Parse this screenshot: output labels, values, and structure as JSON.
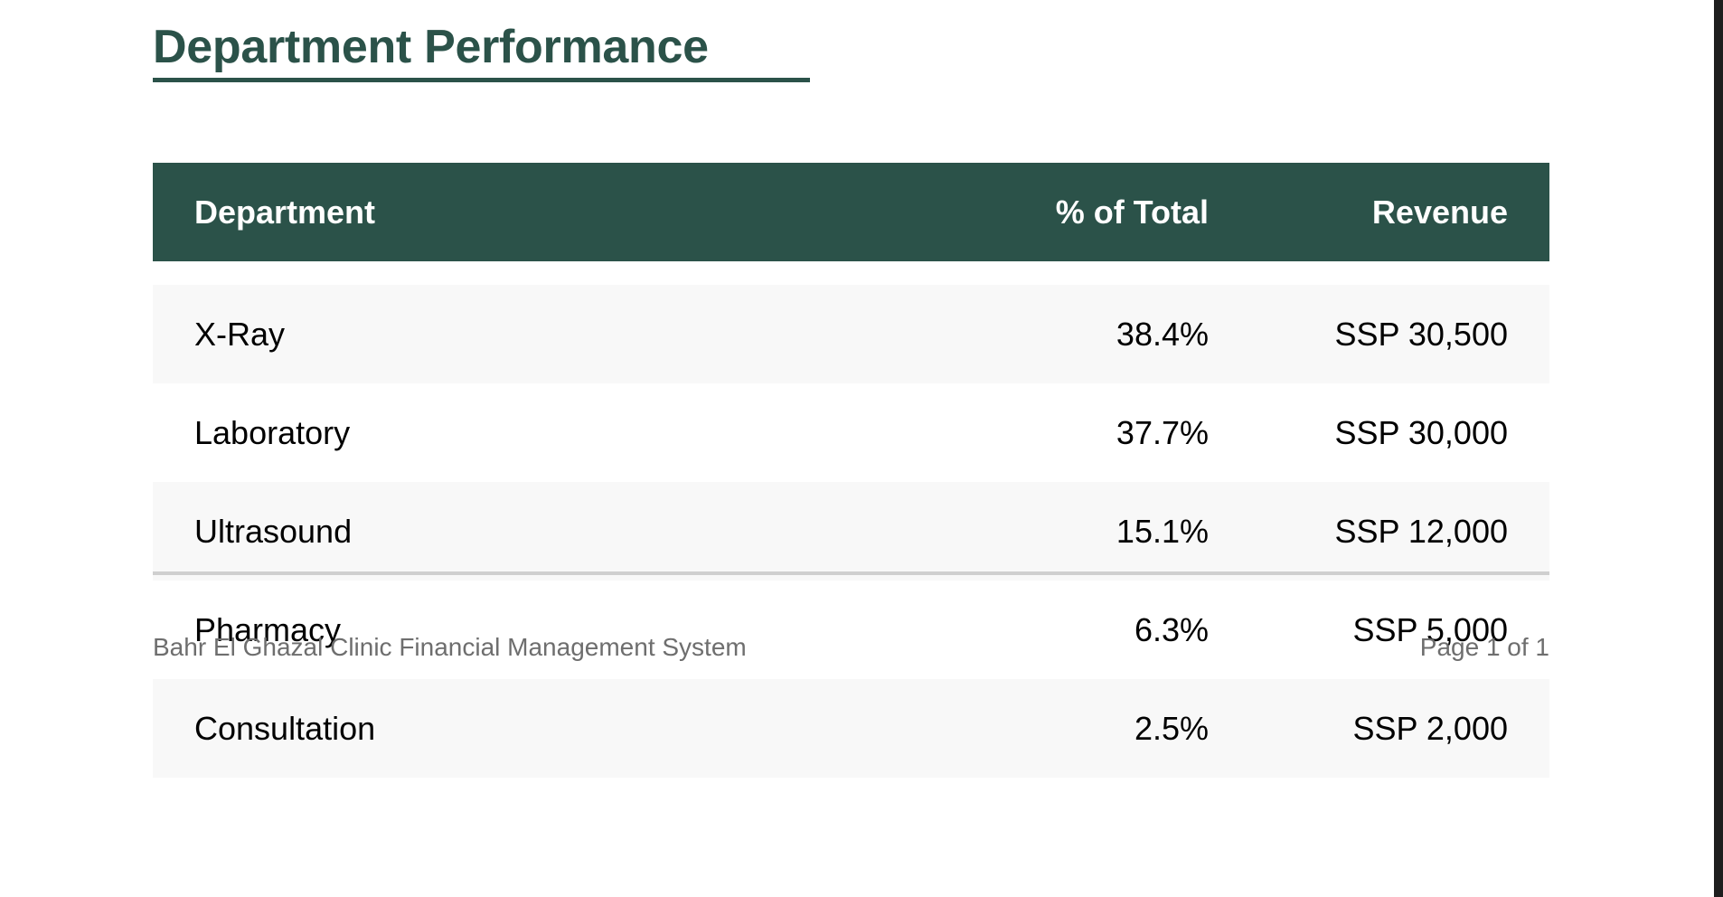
{
  "title": "Department Performance",
  "table": {
    "headers": {
      "department": "Department",
      "percent": "% of Total",
      "revenue": "Revenue"
    },
    "rows": [
      {
        "department": "X-Ray",
        "percent": "38.4%",
        "revenue": "SSP 30,500"
      },
      {
        "department": "Laboratory",
        "percent": "37.7%",
        "revenue": "SSP 30,000"
      },
      {
        "department": "Ultrasound",
        "percent": "15.1%",
        "revenue": "SSP 12,000"
      },
      {
        "department": "Pharmacy",
        "percent": "6.3%",
        "revenue": "SSP 5,000"
      },
      {
        "department": "Consultation",
        "percent": "2.5%",
        "revenue": "SSP 2,000"
      }
    ]
  },
  "footer": {
    "system_name": "Bahr El Ghazal Clinic Financial Management System",
    "page_info": "Page 1 of 1"
  },
  "colors": {
    "accent": "#2b5249",
    "row_shade": "#f8f8f8",
    "footer_text": "#6e6e6e"
  }
}
